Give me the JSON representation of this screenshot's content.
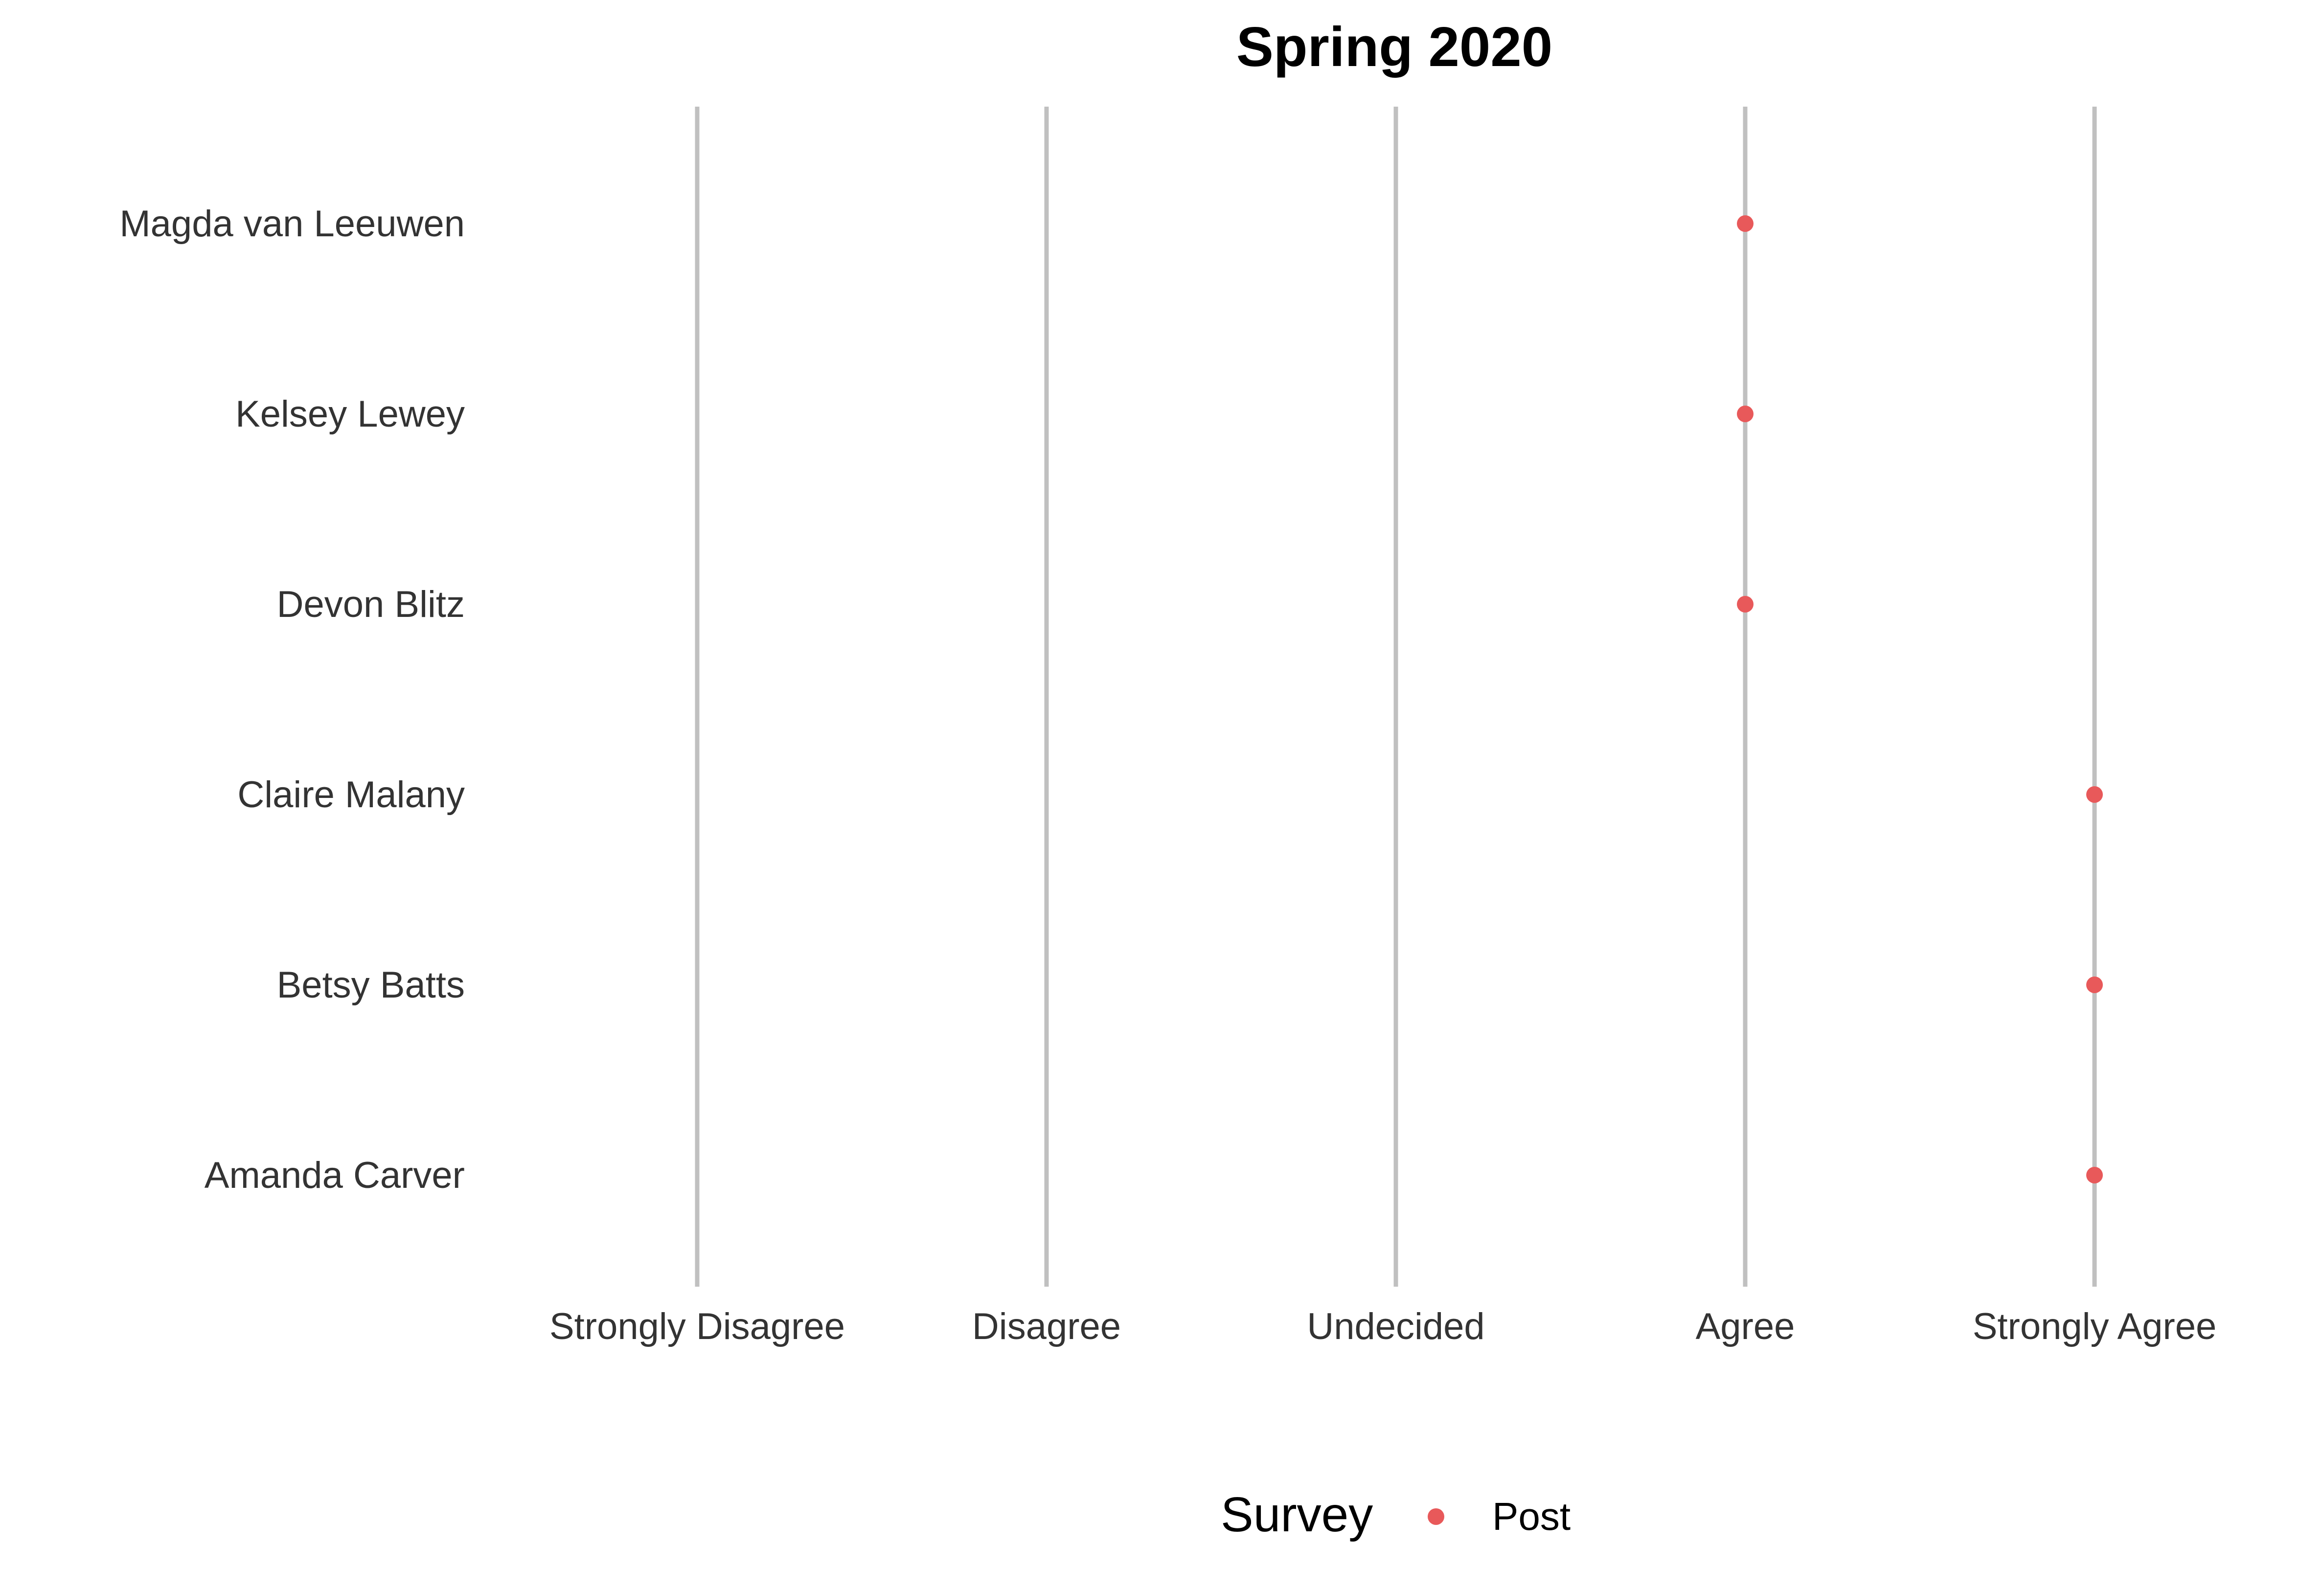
{
  "chart_data": {
    "type": "scatter",
    "title": "Spring 2020",
    "x_categories": [
      "Strongly Disagree",
      "Disagree",
      "Undecided",
      "Agree",
      "Strongly Agree"
    ],
    "y_categories": [
      "Magda van Leeuwen",
      "Kelsey Lewey",
      "Devon Blitz",
      "Claire Malany",
      "Betsy Batts",
      "Amanda Carver"
    ],
    "series": [
      {
        "name": "Post",
        "color": "#E8595A",
        "points": [
          {
            "y": "Magda van Leeuwen",
            "x": "Agree"
          },
          {
            "y": "Kelsey Lewey",
            "x": "Agree"
          },
          {
            "y": "Devon Blitz",
            "x": "Agree"
          },
          {
            "y": "Claire Malany",
            "x": "Strongly Agree"
          },
          {
            "y": "Betsy Batts",
            "x": "Strongly Agree"
          },
          {
            "y": "Amanda Carver",
            "x": "Strongly Agree"
          }
        ]
      }
    ],
    "grid": "vertical",
    "legend": {
      "title": "Survey",
      "position": "bottom"
    }
  }
}
